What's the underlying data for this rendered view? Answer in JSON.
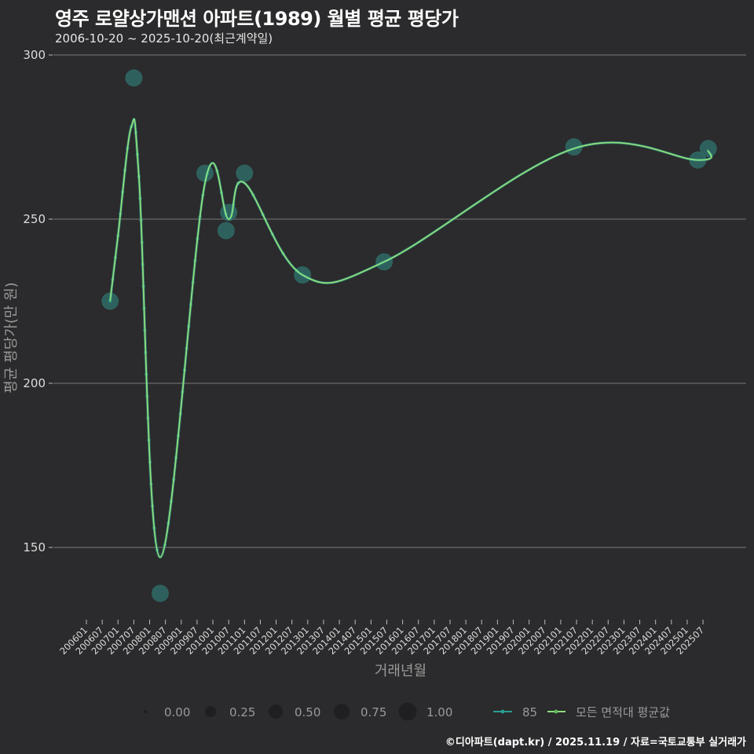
{
  "header": {
    "title": "영주 로얄상가맨션 아파트(1989) 월별 평균 평당가",
    "subtitle": "2006-10-20 ~ 2025-10-20(최근계약일)"
  },
  "caption": "©디아파트(dapt.kr) / 2025.11.19 / 자료=국토교통부 실거래가",
  "colors": {
    "background": "#2b2a2c",
    "grid": "#6a6a6a",
    "series_85": "#2a9d8f",
    "series_avg": "#8ee07e",
    "bubble": "#2f6b66"
  },
  "chart_data": {
    "type": "line",
    "title": "영주 로얄상가맨션 아파트(1989) 월별 평균 평당가",
    "subtitle": "2006-10-20 ~ 2025-10-20(최근계약일)",
    "xlabel": "거래년월",
    "ylabel": "평균 평당가(만 원)",
    "ylim": [
      128,
      302
    ],
    "yticks": [
      150,
      200,
      250,
      300
    ],
    "grid": true,
    "x_tick_labels": [
      "200601",
      "200607",
      "200701",
      "200707",
      "200801",
      "200807",
      "200901",
      "200907",
      "201001",
      "201007",
      "201101",
      "201107",
      "201201",
      "201207",
      "201301",
      "201307",
      "201401",
      "201407",
      "201501",
      "201507",
      "201601",
      "201607",
      "201701",
      "201707",
      "201801",
      "201807",
      "201901",
      "201907",
      "202001",
      "202007",
      "202101",
      "202107",
      "202201",
      "202207",
      "202301",
      "202307",
      "202401",
      "202407",
      "202501",
      "202507"
    ],
    "series": [
      {
        "name": "85",
        "kind": "points (size = 거래 비율)",
        "points": [
          {
            "x": "200610",
            "y": 225,
            "size": 0.5
          },
          {
            "x": "200707",
            "y": 293,
            "size": 0.5
          },
          {
            "x": "200805",
            "y": 136,
            "size": 0.5
          },
          {
            "x": "200910",
            "y": 264,
            "size": 0.5
          },
          {
            "x": "201006",
            "y": 246.5,
            "size": 0.5
          },
          {
            "x": "201007",
            "y": 252,
            "size": 0.5
          },
          {
            "x": "201101",
            "y": 264,
            "size": 0.5
          },
          {
            "x": "201211",
            "y": 233,
            "size": 0.5
          },
          {
            "x": "201506",
            "y": 237,
            "size": 0.5
          },
          {
            "x": "202106",
            "y": 272,
            "size": 0.5
          },
          {
            "x": "202505",
            "y": 268,
            "size": 0.5
          },
          {
            "x": "202509",
            "y": 271.5,
            "size": 0.5
          }
        ]
      },
      {
        "name": "모든 면적대 평균값",
        "kind": "smoothed line",
        "points": [
          {
            "x": "200610",
            "y": 225
          },
          {
            "x": "200701",
            "y": 245
          },
          {
            "x": "200706",
            "y": 278
          },
          {
            "x": "200709",
            "y": 262
          },
          {
            "x": "200805",
            "y": 147
          },
          {
            "x": "200910",
            "y": 261
          },
          {
            "x": "201007",
            "y": 250
          },
          {
            "x": "201101",
            "y": 261
          },
          {
            "x": "201211",
            "y": 233
          },
          {
            "x": "201506",
            "y": 237
          },
          {
            "x": "202106",
            "y": 271.5
          },
          {
            "x": "202505",
            "y": 268
          },
          {
            "x": "202509",
            "y": 271
          }
        ]
      }
    ],
    "size_legend": {
      "title": "",
      "values": [
        "0.00",
        "0.25",
        "0.50",
        "0.75",
        "1.00"
      ]
    },
    "legend_position": "bottom"
  },
  "legend": {
    "sizes": [
      "0.00",
      "0.25",
      "0.50",
      "0.75",
      "1.00"
    ],
    "series_85": "85",
    "series_avg": "모든 면적대 평균값"
  }
}
